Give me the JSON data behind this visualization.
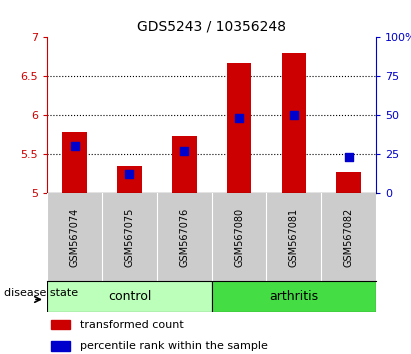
{
  "title": "GDS5243 / 10356248",
  "samples": [
    "GSM567074",
    "GSM567075",
    "GSM567076",
    "GSM567080",
    "GSM567081",
    "GSM567082"
  ],
  "groups": [
    "control",
    "control",
    "control",
    "arthritis",
    "arthritis",
    "arthritis"
  ],
  "bar_values": [
    5.78,
    5.35,
    5.73,
    6.67,
    6.8,
    5.27
  ],
  "bar_base": 5.0,
  "percentile_values": [
    30,
    12,
    27,
    48,
    50,
    23
  ],
  "ylim_left": [
    5.0,
    7.0
  ],
  "ylim_right": [
    0,
    100
  ],
  "yticks_left": [
    5.0,
    5.5,
    6.0,
    6.5,
    7.0
  ],
  "yticks_right": [
    0,
    25,
    50,
    75,
    100
  ],
  "ytick_labels_left": [
    "5",
    "5.5",
    "6",
    "6.5",
    "7"
  ],
  "ytick_labels_right": [
    "0",
    "25",
    "50",
    "75",
    "100%"
  ],
  "bar_color": "#cc0000",
  "dot_color": "#0000cc",
  "bar_width": 0.45,
  "dot_size": 30,
  "ctrl_color": "#bbffbb",
  "arthr_color": "#44dd44",
  "label_bg_color": "#cccccc",
  "grid_yticks": [
    5.5,
    6.0,
    6.5
  ],
  "legend_items": [
    "transformed count",
    "percentile rank within the sample"
  ],
  "group_label": "disease state",
  "n_control": 3,
  "n_arthritis": 3
}
